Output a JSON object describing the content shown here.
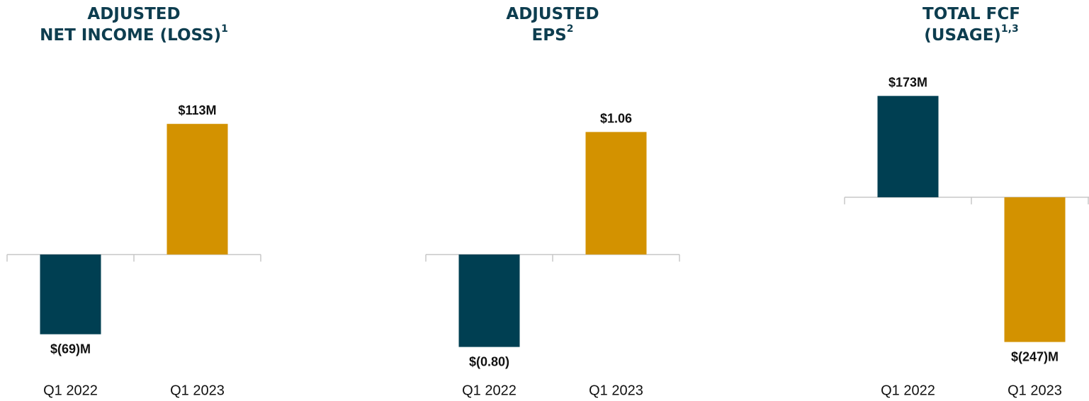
{
  "chart_data": [
    {
      "type": "bar",
      "title_lines": [
        "ADJUSTED",
        "NET INCOME (LOSS)"
      ],
      "title_sup": "1",
      "categories": [
        "Q1 2022",
        "Q1 2023"
      ],
      "values": [
        -69,
        113
      ],
      "value_labels": [
        "$(69)M",
        "$113M"
      ],
      "colors": [
        "#003f52",
        "#d39200"
      ],
      "ylim": [
        -98,
        159
      ]
    },
    {
      "type": "bar",
      "title_lines": [
        "ADJUSTED",
        "EPS"
      ],
      "title_sup": "2",
      "categories": [
        "Q1 2022",
        "Q1 2023"
      ],
      "values": [
        -0.8,
        1.06
      ],
      "value_labels": [
        "$(0.80)",
        "$1.06"
      ],
      "colors": [
        "#003f52",
        "#d39200"
      ],
      "ylim": [
        -0.98,
        1.59
      ]
    },
    {
      "type": "bar",
      "title_lines": [
        "TOTAL FCF",
        "(USAGE)"
      ],
      "title_sup": "1,3",
      "categories": [
        "Q1 2022",
        "Q1 2023"
      ],
      "values": [
        173,
        -247
      ],
      "value_labels": [
        "$173M",
        "$(247)M"
      ],
      "colors": [
        "#003f52",
        "#d39200"
      ],
      "ylim": [
        -291,
        216
      ]
    }
  ]
}
